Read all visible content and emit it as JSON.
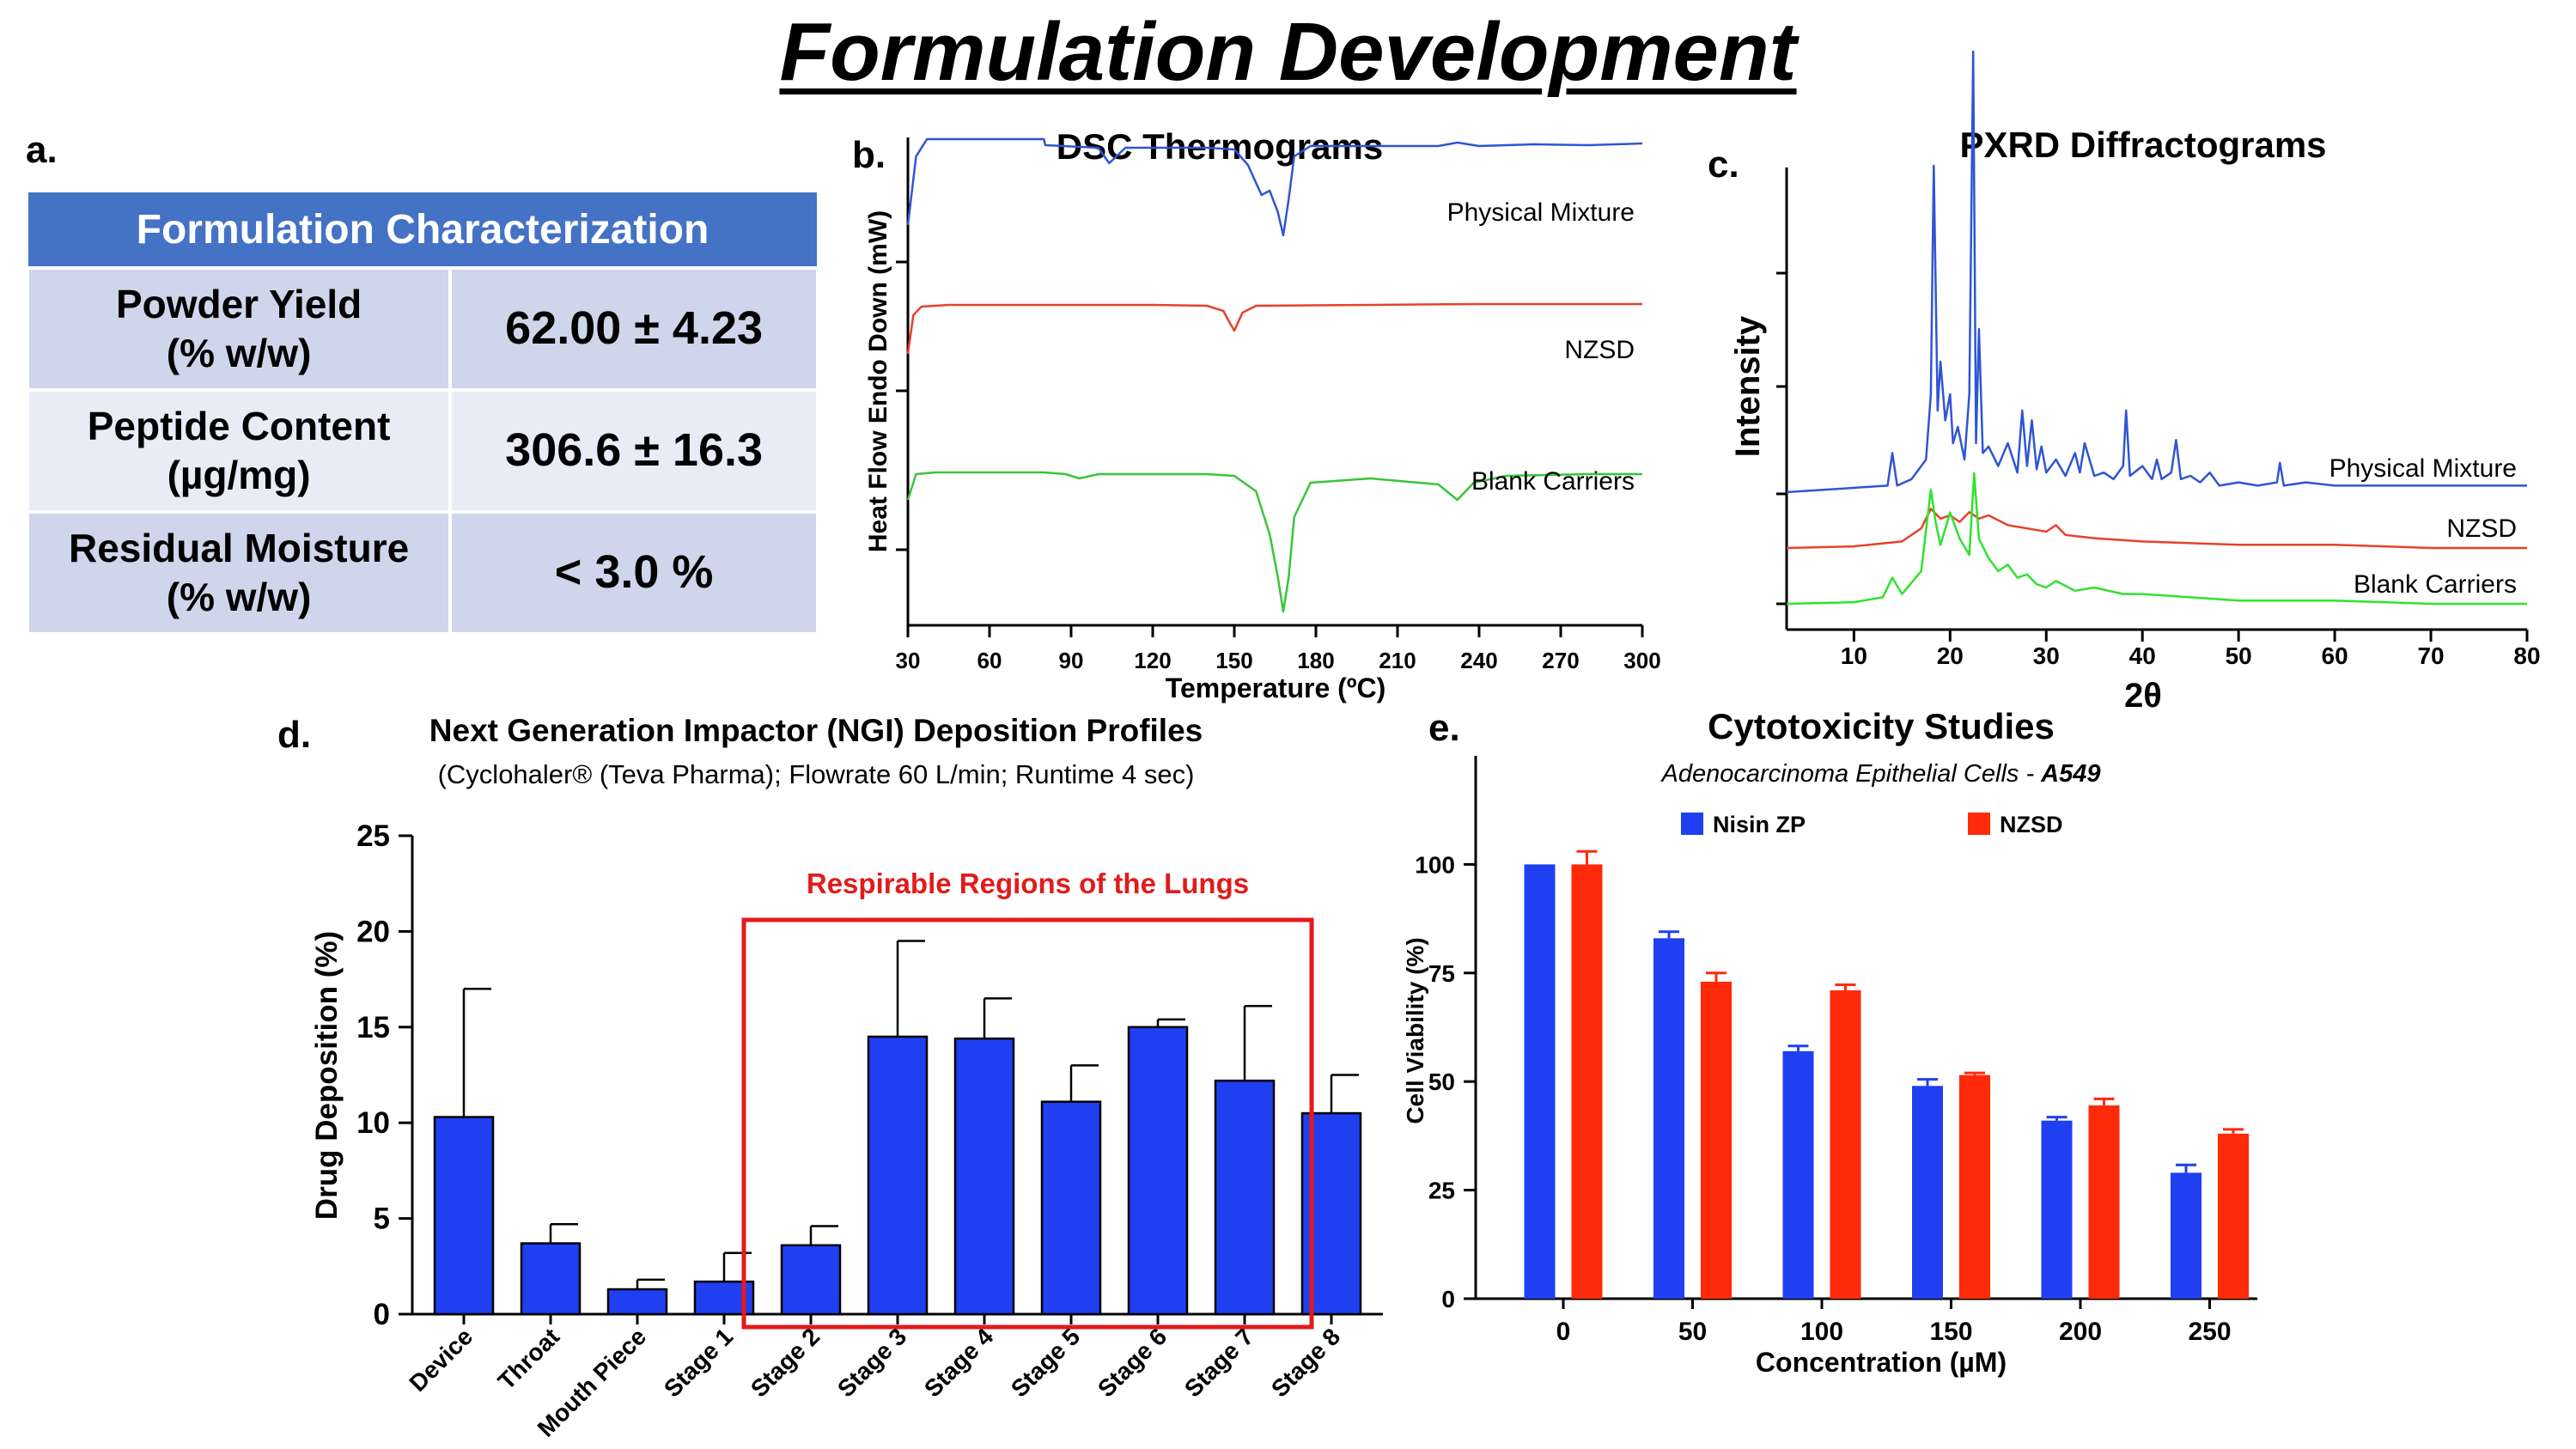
{
  "page_title": "Formulation Development",
  "panel_a": {
    "letter": "a.",
    "table_header": "Formulation Characterization",
    "rows": [
      {
        "label_line1": "Powder Yield",
        "label_line2": "(% w/w)",
        "value": "62.00 ± 4.23"
      },
      {
        "label_line1": "Peptide Content",
        "label_line2": "(µg/mg)",
        "value": "306.6 ± 16.3"
      },
      {
        "label_line1": "Residual Moisture",
        "label_line2": "(% w/w)",
        "value": "< 3.0 %"
      }
    ]
  },
  "chart_data": [
    {
      "panel": "b.",
      "type": "line",
      "title": "DSC Thermograms",
      "xlabel": "Temperature (ºC)",
      "ylabel": "Heat Flow Endo Down (mW)",
      "xlim": [
        30,
        300
      ],
      "xticks": [
        30,
        60,
        90,
        120,
        150,
        180,
        210,
        240,
        270,
        300
      ],
      "grid": false,
      "series": [
        {
          "name": "Physical Mixture",
          "color": "#2f55d4",
          "offset": 3.2,
          "x": [
            30,
            33,
            37,
            45,
            60,
            80,
            80.5,
            100,
            104,
            110,
            140,
            150,
            155,
            160,
            163,
            166,
            168,
            170,
            172,
            178,
            200,
            225,
            232,
            240,
            260,
            280,
            300
          ],
          "y": [
            0,
            0.8,
            1.0,
            1.0,
            1.0,
            1.0,
            0.93,
            0.9,
            0.72,
            0.9,
            0.9,
            0.88,
            0.7,
            0.35,
            0.4,
            0.15,
            -0.12,
            0.3,
            0.8,
            0.92,
            0.92,
            0.92,
            0.96,
            0.92,
            0.94,
            0.93,
            0.95
          ]
        },
        {
          "name": "NZSD",
          "color": "#e8412b",
          "offset": 1.7,
          "x": [
            30,
            32,
            35,
            45,
            80,
            120,
            140,
            146,
            148,
            150,
            153,
            158,
            200,
            240,
            270,
            300
          ],
          "y": [
            0,
            0.45,
            0.55,
            0.57,
            0.57,
            0.57,
            0.56,
            0.5,
            0.38,
            0.27,
            0.48,
            0.56,
            0.57,
            0.58,
            0.58,
            0.58
          ]
        },
        {
          "name": "Blank Carriers",
          "color": "#3ac43a",
          "offset": 0.0,
          "x": [
            30,
            33,
            40,
            80,
            88,
            93,
            100,
            140,
            150,
            158,
            163,
            166,
            168,
            170,
            172,
            178,
            200,
            225,
            232,
            238,
            250,
            280,
            300
          ],
          "y": [
            0,
            0.3,
            0.32,
            0.32,
            0.3,
            0.25,
            0.3,
            0.3,
            0.28,
            0.1,
            -0.4,
            -0.9,
            -1.3,
            -0.9,
            -0.2,
            0.2,
            0.25,
            0.18,
            0.0,
            0.2,
            0.28,
            0.3,
            0.3
          ]
        }
      ]
    },
    {
      "panel": "c.",
      "type": "line",
      "title": "PXRD Diffractograms",
      "xlabel": "2θ",
      "ylabel": "Intensity",
      "xlim": [
        3,
        80
      ],
      "xticks": [
        10,
        20,
        30,
        40,
        50,
        60,
        70,
        80
      ],
      "grid": false,
      "series": [
        {
          "name": "Physical Mixture",
          "color": "#2f55d4",
          "offset": 2.0,
          "x": [
            3,
            13.5,
            14,
            14.5,
            16,
            17.5,
            18,
            18.3,
            18.7,
            19,
            19.5,
            20,
            20.3,
            20.8,
            21.5,
            22,
            22.4,
            22.7,
            23,
            23.4,
            24,
            25,
            26,
            27,
            27.5,
            28,
            28.5,
            29,
            29.5,
            30,
            31,
            32,
            33,
            33.5,
            34,
            35,
            36,
            37,
            38,
            38.3,
            38.7,
            40,
            41,
            41.5,
            42,
            43,
            43.5,
            44,
            45,
            46,
            47,
            48,
            50,
            52,
            54,
            54.3,
            54.7,
            57,
            60,
            63,
            66,
            70,
            75,
            80
          ],
          "y": [
            0,
            0.02,
            0.12,
            0.02,
            0.04,
            0.1,
            0.3,
            1.0,
            0.25,
            0.4,
            0.22,
            0.3,
            0.15,
            0.2,
            0.1,
            0.3,
            1.35,
            0.15,
            0.5,
            0.12,
            0.14,
            0.08,
            0.15,
            0.06,
            0.25,
            0.08,
            0.22,
            0.07,
            0.14,
            0.06,
            0.1,
            0.05,
            0.12,
            0.06,
            0.15,
            0.05,
            0.06,
            0.04,
            0.08,
            0.25,
            0.05,
            0.08,
            0.04,
            0.1,
            0.04,
            0.06,
            0.16,
            0.04,
            0.05,
            0.03,
            0.06,
            0.02,
            0.03,
            0.02,
            0.03,
            0.09,
            0.02,
            0.03,
            0.02,
            0.02,
            0.02,
            0.02,
            0.02,
            0.02
          ]
        },
        {
          "name": "NZSD",
          "color": "#e8412b",
          "offset": 1.0,
          "x": [
            3,
            10,
            15,
            17,
            18,
            19,
            20,
            21,
            22,
            23,
            24,
            26,
            28,
            30,
            31,
            32,
            35,
            40,
            50,
            60,
            70,
            80
          ],
          "y": [
            0,
            0.005,
            0.02,
            0.06,
            0.12,
            0.09,
            0.1,
            0.08,
            0.11,
            0.09,
            0.1,
            0.07,
            0.06,
            0.05,
            0.07,
            0.04,
            0.03,
            0.02,
            0.01,
            0.01,
            0.0,
            0.0
          ]
        },
        {
          "name": "Blank Carriers",
          "color": "#2ee32e",
          "offset": 0.0,
          "x": [
            3,
            10,
            13,
            14,
            15,
            17,
            18,
            18.5,
            19,
            20,
            21,
            22,
            22.5,
            23,
            24,
            25,
            26,
            27,
            28,
            29,
            30,
            31,
            33,
            35,
            38,
            40,
            45,
            50,
            60,
            70,
            80
          ],
          "y": [
            0,
            0.005,
            0.02,
            0.08,
            0.03,
            0.1,
            0.35,
            0.25,
            0.18,
            0.28,
            0.2,
            0.15,
            0.4,
            0.2,
            0.14,
            0.1,
            0.12,
            0.08,
            0.09,
            0.06,
            0.05,
            0.07,
            0.04,
            0.05,
            0.03,
            0.03,
            0.02,
            0.01,
            0.01,
            0.0,
            0.0
          ]
        }
      ]
    },
    {
      "panel": "d.",
      "type": "bar",
      "title": "Next Generation Impactor (NGI) Deposition Profiles",
      "subtitle": "(Cyclohaler® (Teva Pharma); Flowrate 60 L/min; Runtime 4 sec)",
      "ylabel": "Drug Deposition (%)",
      "xlabel": "",
      "ylim": [
        0,
        25
      ],
      "yticks": [
        0,
        5,
        10,
        15,
        20,
        25
      ],
      "bar_color": "#1f3ff0",
      "categories": [
        "Device",
        "Throat",
        "Mouth Piece",
        "Stage 1",
        "Stage 2",
        "Stage 3",
        "Stage 4",
        "Stage 5",
        "Stage 6",
        "Stage 7",
        "Stage 8"
      ],
      "values": [
        10.3,
        3.7,
        1.3,
        1.7,
        3.6,
        14.5,
        14.4,
        11.1,
        15.0,
        12.2,
        10.5
      ],
      "errors": [
        6.7,
        1.0,
        0.5,
        1.5,
        1.0,
        5.0,
        2.1,
        1.9,
        0.4,
        3.9,
        2.0
      ],
      "annotation": {
        "text": "Respirable Regions of the Lungs",
        "color": "#e21b1b",
        "from_category": "Stage 2",
        "to_category": "Stage 7"
      }
    },
    {
      "panel": "e.",
      "type": "bar",
      "title": "Cytotoxicity Studies",
      "subtitle_prefix": "Adenocarcinoma Epithelial Cells - ",
      "subtitle_bold": "A549",
      "xlabel": "Concentration (µM)",
      "ylabel": "Cell Viability (%)",
      "ylim": [
        0,
        125
      ],
      "yticks": [
        0,
        25,
        50,
        75,
        100
      ],
      "legend": "top",
      "categories": [
        "0",
        "50",
        "100",
        "150",
        "200",
        "250"
      ],
      "series": [
        {
          "name": "Nisin ZP",
          "color": "#1f3ff0",
          "values": [
            100,
            83,
            57,
            49,
            41,
            29
          ],
          "errors": [
            0,
            1.5,
            1.2,
            1.5,
            0.8,
            1.8
          ]
        },
        {
          "name": "NZSD",
          "color": "#ff2a0a",
          "values": [
            100,
            73,
            71,
            51.5,
            44.5,
            38
          ],
          "errors": [
            3,
            2,
            1.3,
            0.5,
            1.5,
            1.0
          ]
        }
      ]
    }
  ]
}
